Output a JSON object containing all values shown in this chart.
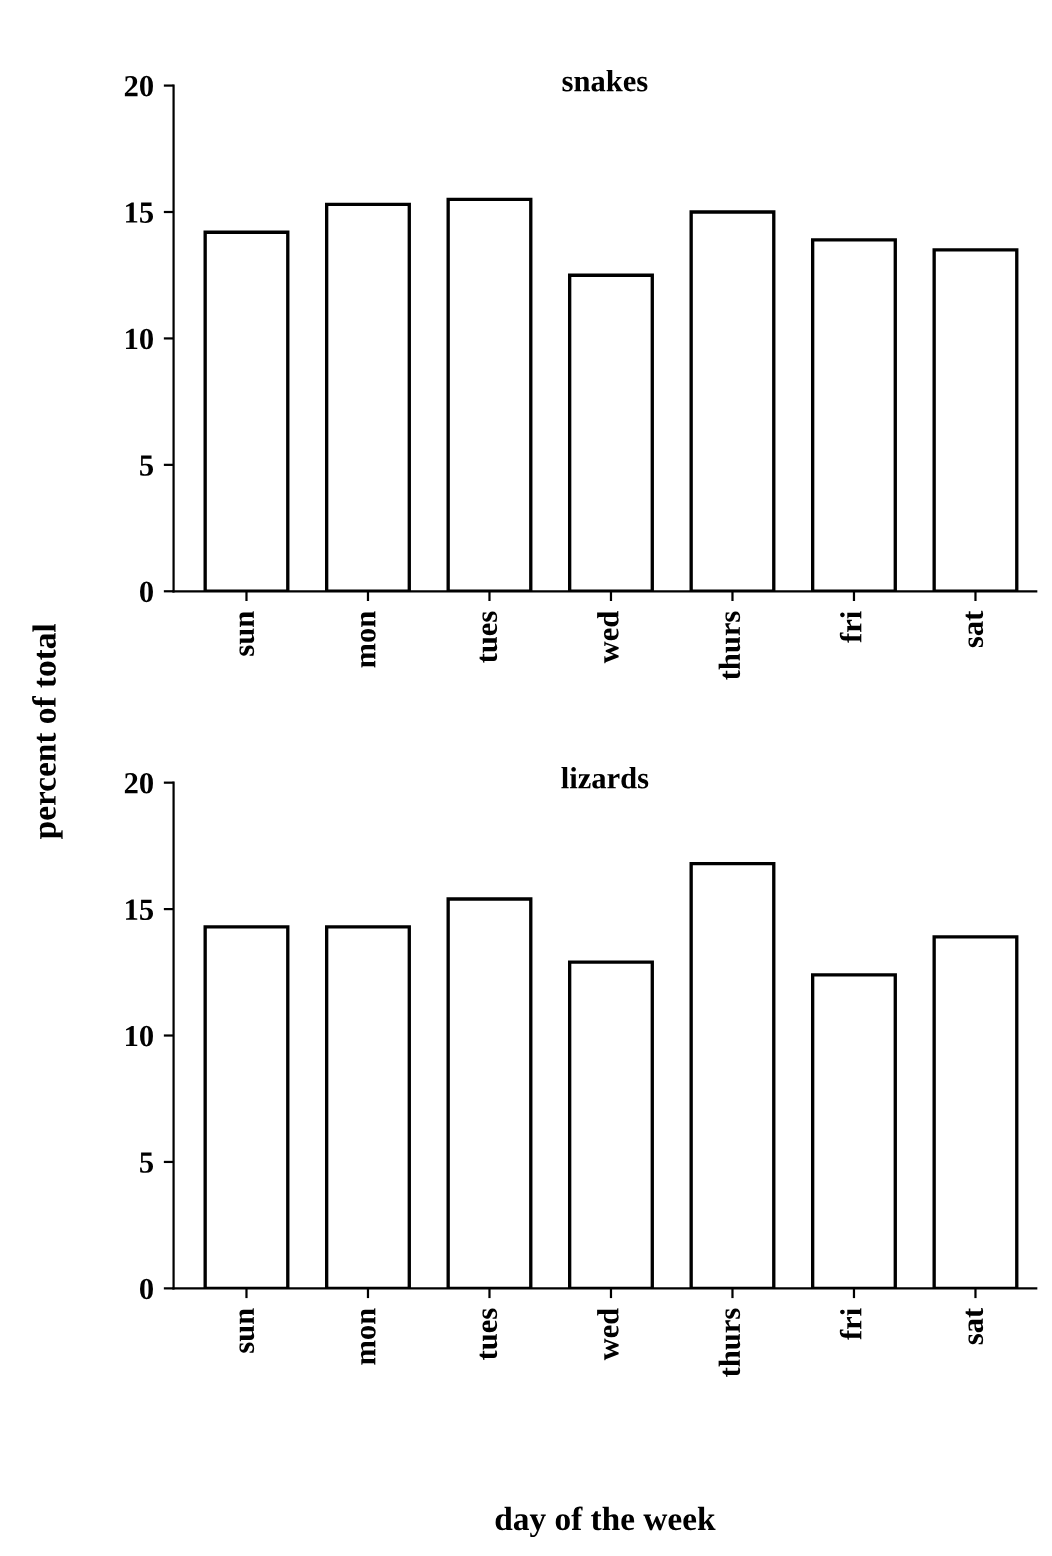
{
  "chart_data": [
    {
      "type": "bar",
      "title": "snakes",
      "ylabel": "percent of total",
      "categories": [
        "sun",
        "mon",
        "tues",
        "wed",
        "thurs",
        "fri",
        "sat"
      ],
      "values": [
        14.2,
        15.3,
        15.5,
        12.5,
        15.0,
        13.9,
        13.5
      ],
      "color": "#ffffff",
      "ylim": [
        0,
        20
      ],
      "yticks": [
        0,
        5,
        10,
        15,
        20
      ],
      "grid": false,
      "legend": false
    },
    {
      "type": "bar",
      "title": "lizards",
      "xlabel": "day of the week",
      "categories": [
        "sun",
        "mon",
        "tues",
        "wed",
        "thurs",
        "fri",
        "sat"
      ],
      "values": [
        14.3,
        14.3,
        15.4,
        12.9,
        16.8,
        12.4,
        13.9
      ],
      "color": "#ffffff",
      "ylim": [
        0,
        20
      ],
      "yticks": [
        0,
        5,
        10,
        15,
        20
      ],
      "grid": false,
      "legend": false
    }
  ]
}
